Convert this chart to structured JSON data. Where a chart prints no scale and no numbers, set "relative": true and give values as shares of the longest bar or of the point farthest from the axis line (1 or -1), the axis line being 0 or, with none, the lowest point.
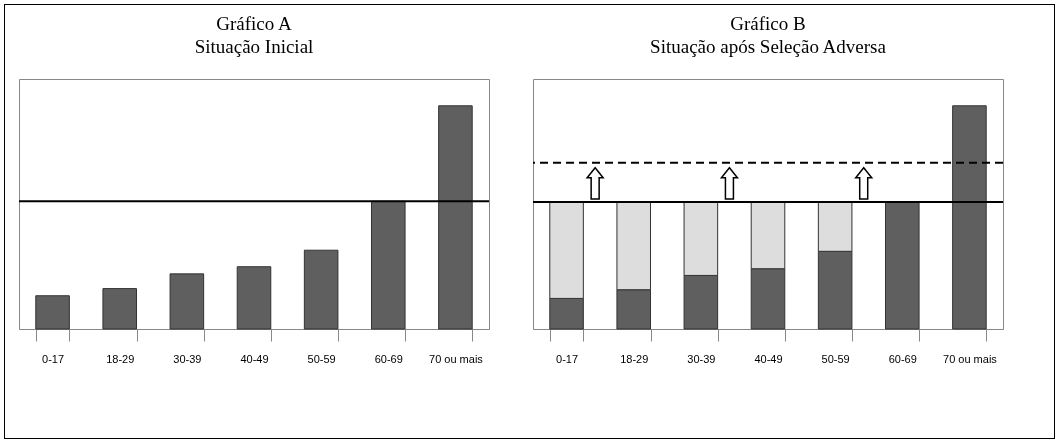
{
  "chart_data": [
    {
      "type": "bar",
      "title": "Gráfico A",
      "subtitle": "Situação Inicial",
      "relative": true,
      "categories": [
        "0-17",
        "18-29",
        "30-39",
        "40-49",
        "50-59",
        "60-69",
        "70 ou mais"
      ],
      "series": [
        {
          "color": "#5f5f5f",
          "values": [
            0.149,
            0.181,
            0.247,
            0.279,
            0.353,
            0.572,
            1
          ]
        }
      ],
      "ref_lines": [
        {
          "axis": "y",
          "value": 0.572,
          "color": "#000000",
          "line_style": "solid"
        }
      ]
    },
    {
      "type": "bar",
      "title": "Gráfico B",
      "subtitle": "Situação após Seleção Adversa",
      "relative": true,
      "stacked": true,
      "categories": [
        "0-17",
        "18-29",
        "30-39",
        "40-49",
        "50-59",
        "60-69",
        "70 ou mais"
      ],
      "series": [
        {
          "color": "#5f5f5f",
          "values": [
            0.137,
            0.176,
            0.24,
            0.27,
            0.348,
            0.569,
            1
          ]
        },
        {
          "color": "#dddddd",
          "values": [
            0.432,
            0.393,
            0.329,
            0.299,
            0.221,
            null,
            null
          ]
        }
      ],
      "ref_lines": [
        {
          "axis": "y",
          "value": 0.569,
          "color": "#000000",
          "line_style": "solid"
        },
        {
          "axis": "y",
          "value": 0.745,
          "color": "#000000",
          "line_style": "dashed"
        }
      ]
    }
  ]
}
